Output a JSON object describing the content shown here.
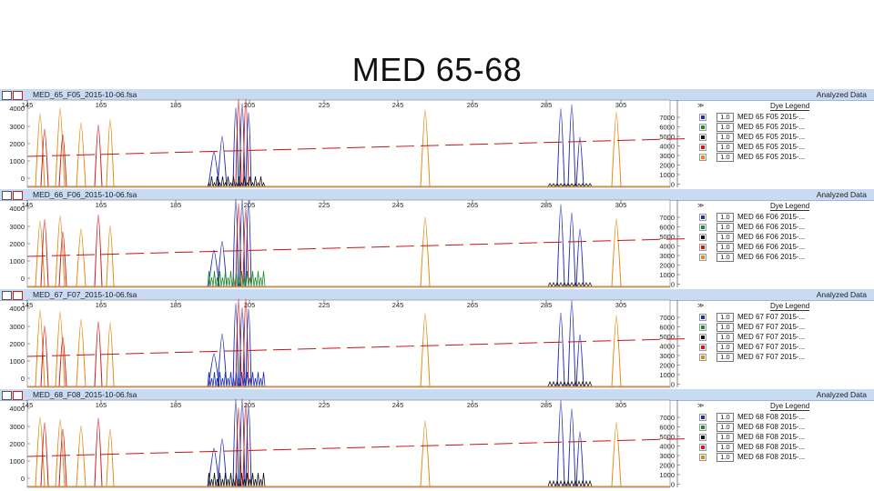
{
  "slide_title": "MED 65-68",
  "status_label": "Analyzed Data",
  "legend_title": "Dye Legend",
  "legend_arrows": "≫",
  "dye_colors": [
    "#1f2fb0",
    "#1f8a2a",
    "#111111",
    "#d01818",
    "#e08a10"
  ],
  "icons": [
    "window-restore-icon",
    "close-icon"
  ],
  "x_ticks": [
    "145",
    "165",
    "185",
    "205",
    "225",
    "245",
    "265",
    "285",
    "305"
  ],
  "panels": [
    {
      "file_name": "MED_65_F05_2015-10-06.fsa",
      "left_axis": [
        "4000",
        "3000",
        "2000",
        "1000",
        "0"
      ],
      "right_axis": [
        "7000",
        "6000",
        "5000",
        "4000",
        "3000",
        "2000",
        "1000",
        "0"
      ],
      "legend_rows": [
        {
          "scale": "1.0",
          "label": "MED 65 F05 2015-..."
        },
        {
          "scale": "1.0",
          "label": "MED 65 F05 2015-..."
        },
        {
          "scale": "1.0",
          "label": "MED 65 F05 2015-..."
        },
        {
          "scale": "1.0",
          "label": "MED 65 F05 2015-..."
        },
        {
          "scale": "1.0",
          "label": "MED 65 F05 2015-..."
        }
      ]
    },
    {
      "file_name": "MED_66_F06_2015-10-06.fsa",
      "left_axis": [
        "4000",
        "3000",
        "2000",
        "1000",
        "0"
      ],
      "right_axis": [
        "7000",
        "6000",
        "5000",
        "4000",
        "3000",
        "2000",
        "1000",
        "0"
      ],
      "legend_rows": [
        {
          "scale": "1.0",
          "label": "MED 66 F06 2015-..."
        },
        {
          "scale": "1.0",
          "label": "MED 66 F06 2015-..."
        },
        {
          "scale": "1.0",
          "label": "MED 66 F06 2015-..."
        },
        {
          "scale": "1.0",
          "label": "MED 66 F06 2015-..."
        },
        {
          "scale": "1.0",
          "label": "MED 66 F06 2015-..."
        }
      ]
    },
    {
      "file_name": "MED_67_F07_2015-10-06.fsa",
      "left_axis": [
        "4000",
        "3000",
        "2000",
        "1000",
        "0"
      ],
      "right_axis": [
        "7000",
        "6000",
        "5000",
        "4000",
        "3000",
        "2000",
        "1000",
        "0"
      ],
      "legend_rows": [
        {
          "scale": "1.0",
          "label": "MED 67 F07 2015-..."
        },
        {
          "scale": "1.0",
          "label": "MED 67 F07 2015-..."
        },
        {
          "scale": "1.0",
          "label": "MED 67 F07 2015-..."
        },
        {
          "scale": "1.0",
          "label": "MED 67 F07 2015-..."
        },
        {
          "scale": "1.0",
          "label": "MED 67 F07 2015-..."
        }
      ]
    },
    {
      "file_name": "MED_68_F08_2015-10-06.fsa",
      "left_axis": [
        "4000",
        "3000",
        "2000",
        "1000",
        "0"
      ],
      "right_axis": [
        "7000",
        "6000",
        "5000",
        "4000",
        "3000",
        "2000",
        "1000",
        "0"
      ],
      "legend_rows": [
        {
          "scale": "1.0",
          "label": "MED 68 F08 2015-..."
        },
        {
          "scale": "1.0",
          "label": "MED 68 F08 2015-..."
        },
        {
          "scale": "1.0",
          "label": "MED 68 F08 2015-..."
        },
        {
          "scale": "1.0",
          "label": "MED 68 F08 2015-..."
        },
        {
          "scale": "1.0",
          "label": "MED 68 F08 2015-..."
        }
      ]
    }
  ]
}
